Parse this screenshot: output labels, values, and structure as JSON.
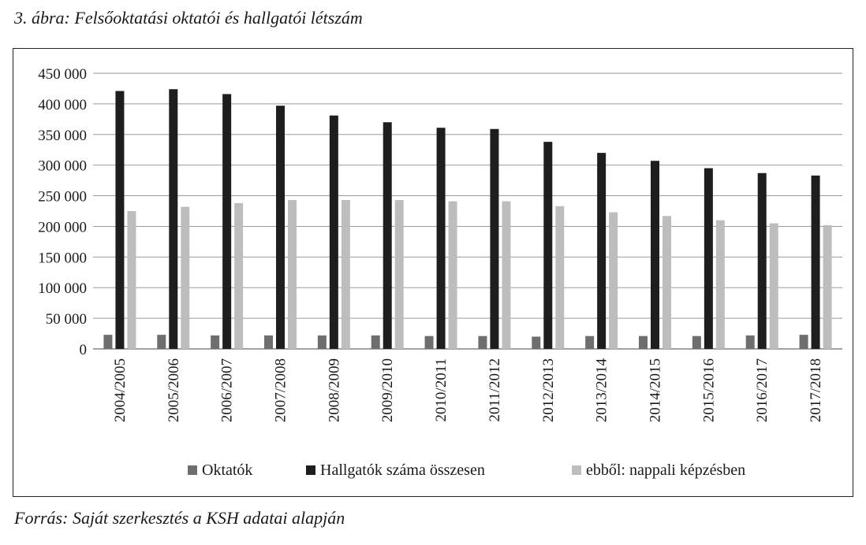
{
  "caption": "3. ábra: Felsőoktatási oktatói és hallgatói létszám",
  "source": "Forrás: Saját szerkesztés a KSH adatai alapján",
  "chart_data": {
    "type": "bar",
    "title": "",
    "xlabel": "",
    "ylabel": "",
    "ylim": [
      0,
      450000
    ],
    "yticks": [
      0,
      50000,
      100000,
      150000,
      200000,
      250000,
      300000,
      350000,
      400000,
      450000
    ],
    "ytick_labels": [
      "0",
      "50 000",
      "100 000",
      "150 000",
      "200 000",
      "250 000",
      "300 000",
      "350 000",
      "400 000",
      "450 000"
    ],
    "grid": true,
    "legend_position": "bottom",
    "categories": [
      "2004/2005",
      "2005/2006",
      "2006/2007",
      "2007/2008",
      "2008/2009",
      "2009/2010",
      "2010/2011",
      "2011/2012",
      "2012/2013",
      "2013/2014",
      "2014/2015",
      "2015/2016",
      "2016/2017",
      "2017/2018"
    ],
    "series": [
      {
        "name": "Oktatók",
        "color": "#6e6e6e",
        "values": [
          23000,
          23000,
          22000,
          22000,
          22000,
          22000,
          21000,
          21000,
          20000,
          21000,
          21000,
          21000,
          22000,
          23000
        ]
      },
      {
        "name": "Hallgatók száma összesen",
        "color": "#1e1e1e",
        "values": [
          421000,
          424000,
          416000,
          397000,
          381000,
          370000,
          361000,
          359000,
          338000,
          320000,
          307000,
          295000,
          287000,
          283000
        ]
      },
      {
        "name": "ebből: nappali képzésben",
        "color": "#bdbdbd",
        "values": [
          225000,
          232000,
          238000,
          243000,
          243000,
          243000,
          241000,
          241000,
          233000,
          223000,
          217000,
          210000,
          205000,
          202000
        ]
      }
    ]
  }
}
